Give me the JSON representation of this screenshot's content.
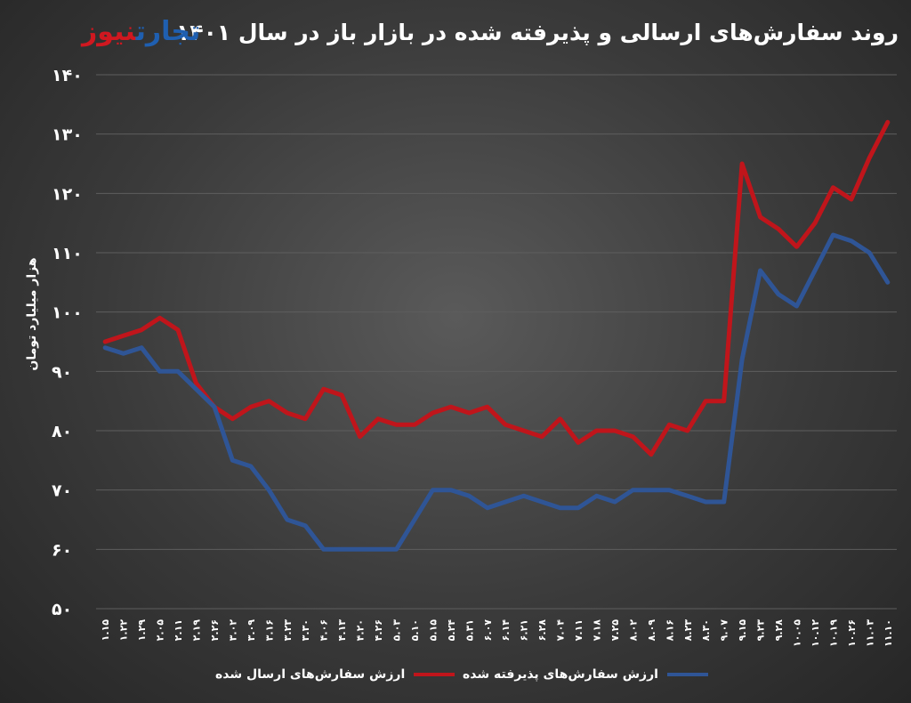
{
  "header": {
    "title": "روند سفارش‌های ارسالی و پذیرفته شده در بازار باز در سال ۱۴۰۱",
    "logo_part1": "تجارت",
    "logo_part2": "نیوز"
  },
  "colors": {
    "sent": "#c0151b",
    "accepted": "#2f5596",
    "logo_red": "#d01820",
    "logo_blue": "#1f5fb0"
  },
  "chart_data": {
    "type": "line",
    "title": "روند سفارش‌های ارسالی و پذیرفته شده در بازار باز در سال ۱۴۰۱",
    "ylabel": "هزار میلیارد تومان",
    "xlabel": "",
    "ylim": [
      50,
      140
    ],
    "yticks": [
      50,
      60,
      70,
      80,
      90,
      100,
      110,
      120,
      130,
      140
    ],
    "ytick_labels": [
      "۵۰",
      "۶۰",
      "۷۰",
      "۸۰",
      "۹۰",
      "۱۰۰",
      "۱۱۰",
      "۱۲۰",
      "۱۳۰",
      "۱۴۰"
    ],
    "grid": "horizontal",
    "legend_position": "bottom",
    "categories": [
      "۱.۱۵",
      "۱.۲۲",
      "۱.۲۹",
      "۲.۰۵",
      "۲.۱۱",
      "۲.۱۹",
      "۲.۲۶",
      "۳.۰۲",
      "۳.۰۹",
      "۳.۱۶",
      "۳.۲۳",
      "۳.۳۰",
      "۴.۰۶",
      "۴.۱۳",
      "۴.۲۰",
      "۴.۲۶",
      "۵.۰۳",
      "۵.۱۰",
      "۵.۱۵",
      "۵.۲۴",
      "۵.۳۱",
      "۶.۰۷",
      "۶.۱۴",
      "۶.۲۱",
      "۶.۲۸",
      "۷.۰۴",
      "۷.۱۱",
      "۷.۱۸",
      "۷.۲۵",
      "۸.۰۲",
      "۸.۰۹",
      "۸.۱۶",
      "۸.۲۳",
      "۸.۳۰",
      "۹.۰۷",
      "۹.۱۵",
      "۹.۲۳",
      "۹.۲۸",
      "۱۰.۰۵",
      "۱۰.۱۲",
      "۱۰.۱۹",
      "۱۰.۲۶",
      "۱۱.۰۳",
      "۱۱.۱۰"
    ],
    "series": [
      {
        "name": "ارزش سفارش‌های ارسال شده",
        "color": "#c0151b",
        "values": [
          95,
          96,
          97,
          99,
          97,
          88,
          84,
          82,
          84,
          85,
          83,
          82,
          87,
          86,
          79,
          82,
          81,
          81,
          83,
          84,
          83,
          84,
          81,
          80,
          79,
          82,
          78,
          80,
          80,
          79,
          76,
          81,
          80,
          85,
          85,
          125,
          116,
          114,
          111,
          115,
          121,
          119,
          126,
          132
        ]
      },
      {
        "name": "ارزش سفارش‌های پذیرفته شده",
        "color": "#2f5596",
        "values": [
          94,
          93,
          94,
          90,
          90,
          87,
          84,
          75,
          74,
          70,
          65,
          64,
          60,
          60,
          60,
          60,
          60,
          65,
          70,
          70,
          69,
          67,
          68,
          69,
          68,
          67,
          67,
          69,
          68,
          70,
          70,
          70,
          69,
          68,
          68,
          92,
          107,
          103,
          101,
          107,
          113,
          112,
          110,
          105
        ]
      }
    ]
  }
}
